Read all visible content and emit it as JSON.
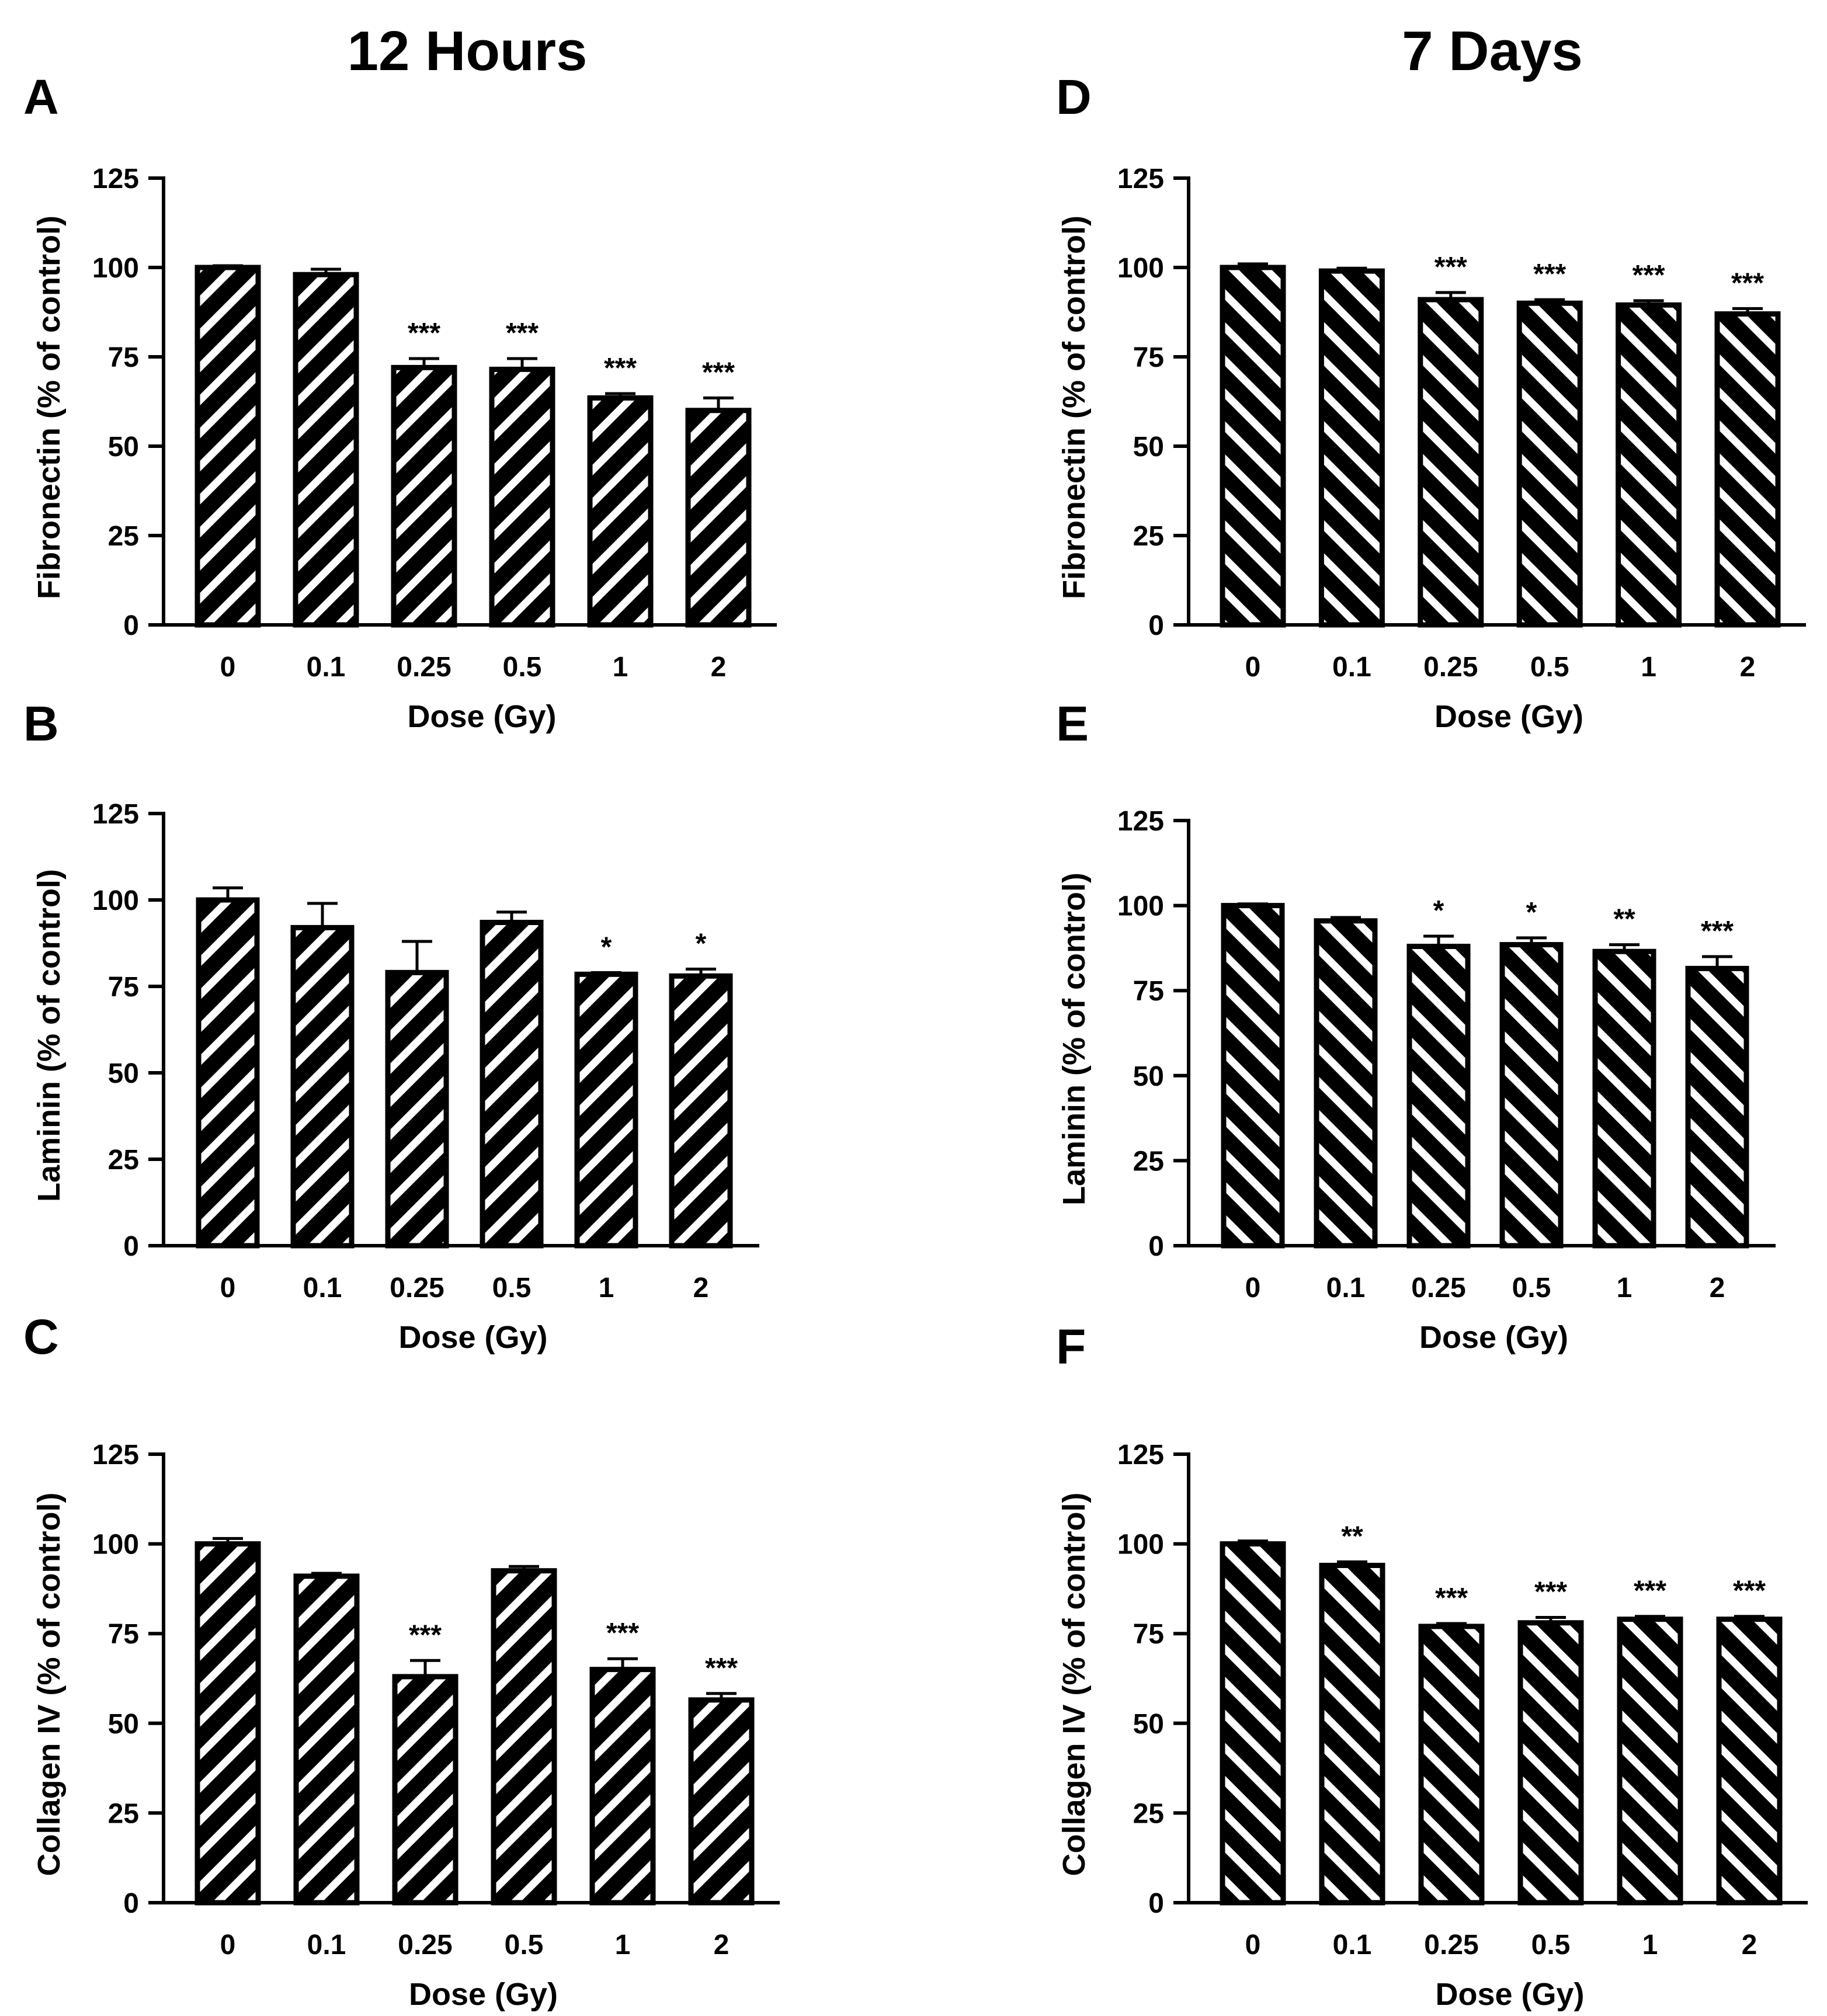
{
  "columns": [
    {
      "title": "12 Hours"
    },
    {
      "title": "7 Days"
    }
  ],
  "chart_data": [
    {
      "panel": "A",
      "type": "bar",
      "title": "12 Hours",
      "categories": [
        "0",
        "0.1",
        "0.25",
        "0.5",
        "1",
        "2"
      ],
      "values": [
        100,
        98,
        72,
        71.5,
        63.5,
        60
      ],
      "errors": [
        0.5,
        1.5,
        2.5,
        3,
        1.2,
        3.5
      ],
      "significance": [
        "",
        "",
        "***",
        "***",
        "***",
        "***"
      ],
      "xlabel": "Dose (Gy)",
      "ylabel": "Fibronectin (% of control)",
      "yticks": [
        "0",
        "25",
        "50",
        "75",
        "100",
        "125"
      ],
      "ylim": [
        0,
        125
      ]
    },
    {
      "panel": "B",
      "type": "bar",
      "categories": [
        "0",
        "0.1",
        "0.25",
        "0.5",
        "1",
        "2"
      ],
      "values": [
        100,
        92,
        79,
        93.5,
        78.5,
        78
      ],
      "errors": [
        3.5,
        7,
        9,
        3,
        0.5,
        2
      ],
      "significance": [
        "",
        "",
        "",
        "",
        "*",
        "*"
      ],
      "xlabel": "Dose (Gy)",
      "ylabel": "Laminin (% of control)",
      "yticks": [
        "0",
        "25",
        "50",
        "75",
        "100",
        "125"
      ],
      "ylim": [
        0,
        125
      ]
    },
    {
      "panel": "C",
      "type": "bar",
      "categories": [
        "0",
        "0.1",
        "0.25",
        "0.5",
        "1",
        "2"
      ],
      "values": [
        100,
        91,
        63,
        92.5,
        65,
        56.5
      ],
      "errors": [
        1.5,
        0.8,
        4.5,
        1.2,
        3,
        1.8
      ],
      "significance": [
        "",
        "",
        "***",
        "",
        "***",
        "***"
      ],
      "xlabel": "Dose (Gy)",
      "ylabel": "Collagen IV (% of control)",
      "yticks": [
        "0",
        "25",
        "50",
        "75",
        "100",
        "125"
      ],
      "ylim": [
        0,
        125
      ]
    },
    {
      "panel": "D",
      "type": "bar",
      "title": "7 Days",
      "categories": [
        "0",
        "0.1",
        "0.25",
        "0.5",
        "1",
        "2"
      ],
      "values": [
        100,
        99,
        91,
        90,
        89.5,
        87
      ],
      "errors": [
        1,
        0.8,
        2,
        1,
        1.2,
        1.5
      ],
      "significance": [
        "",
        "",
        "***",
        "***",
        "***",
        "***"
      ],
      "xlabel": "Dose (Gy)",
      "ylabel": "Fibronectin (% of control)",
      "yticks": [
        "0",
        "25",
        "50",
        "75",
        "100",
        "125"
      ],
      "ylim": [
        0,
        125
      ]
    },
    {
      "panel": "E",
      "type": "bar",
      "categories": [
        "0",
        "0.1",
        "0.25",
        "0.5",
        "1",
        "2"
      ],
      "values": [
        100,
        95.5,
        88,
        88.5,
        86.5,
        81.5
      ],
      "errors": [
        0.5,
        1,
        3,
        2,
        2,
        3.5
      ],
      "significance": [
        "",
        "",
        "*",
        "*",
        "**",
        "***"
      ],
      "xlabel": "Dose (Gy)",
      "ylabel": "Laminin (% of control)",
      "yticks": [
        "0",
        "25",
        "50",
        "75",
        "100",
        "125"
      ],
      "ylim": [
        0,
        125
      ]
    },
    {
      "panel": "F",
      "type": "bar",
      "categories": [
        "0",
        "0.1",
        "0.25",
        "0.5",
        "1",
        "2"
      ],
      "values": [
        100,
        94,
        77,
        78,
        79,
        79
      ],
      "errors": [
        0.8,
        1,
        0.8,
        1.5,
        0.8,
        0.8
      ],
      "significance": [
        "",
        "**",
        "***",
        "***",
        "***",
        "***"
      ],
      "xlabel": "Dose (Gy)",
      "ylabel": "Collagen IV (% of control)",
      "yticks": [
        "0",
        "25",
        "50",
        "75",
        "100",
        "125"
      ],
      "ylim": [
        0,
        125
      ]
    }
  ]
}
